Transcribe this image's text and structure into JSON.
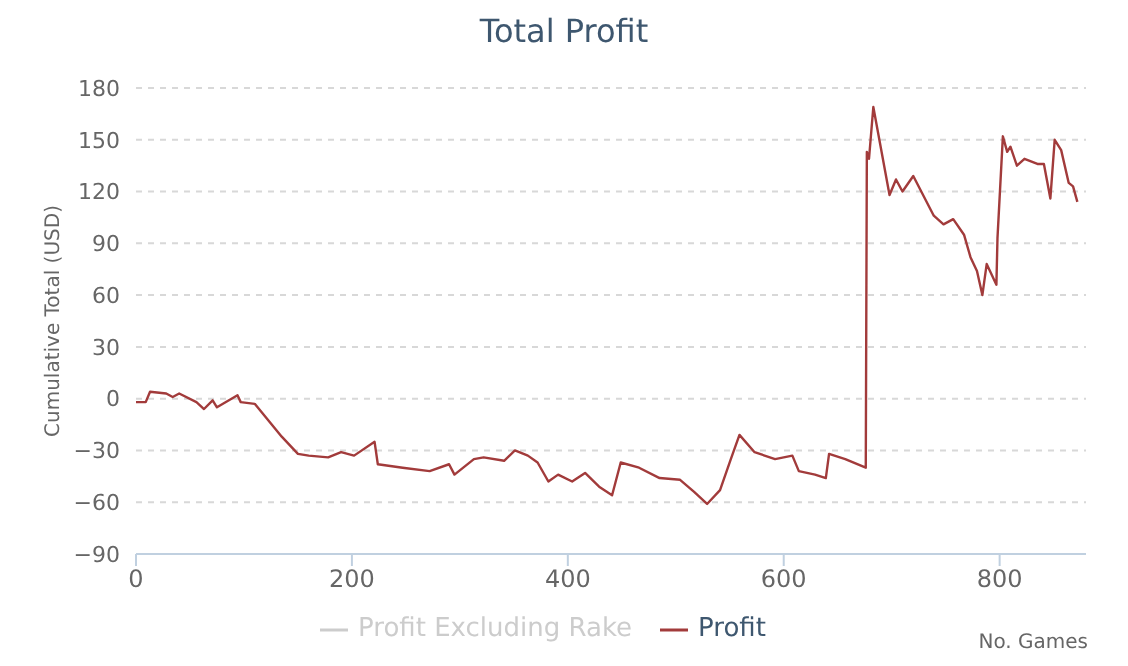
{
  "chart_data": {
    "type": "line",
    "title": "Total Profit",
    "xlabel": "No. Games",
    "ylabel": "Cumulative Total (USD)",
    "xlim": [
      0,
      880
    ],
    "xticks": [
      0,
      200,
      400,
      600,
      800
    ],
    "ylim": [
      -90,
      180
    ],
    "yticks": [
      -90,
      -60,
      -30,
      0,
      30,
      60,
      90,
      120,
      150,
      180
    ],
    "grid": "y",
    "legend": "bottom",
    "series": [
      {
        "name": "Profit Excluding Rake",
        "color": "#cccccc"
      },
      {
        "name": "Profit",
        "color": "#a23b3b",
        "x": [
          0,
          9,
          13,
          28,
          34,
          40,
          56,
          63,
          71,
          75,
          94,
          97,
          110,
          135,
          150,
          160,
          178,
          190,
          202,
          221,
          224,
          247,
          272,
          290,
          295,
          313,
          322,
          341,
          351,
          363,
          372,
          382,
          391,
          404,
          416,
          429,
          441,
          449,
          466,
          485,
          504,
          517,
          529,
          541,
          551,
          559,
          573,
          592,
          608,
          614,
          629,
          639,
          642,
          657,
          676,
          677,
          679,
          683,
          698,
          704,
          710,
          720,
          739,
          748,
          757,
          767,
          773,
          779,
          784,
          788,
          797,
          798,
          803,
          807,
          810,
          816,
          823,
          835,
          841,
          847,
          851,
          857,
          864,
          868,
          872
        ],
        "values": [
          -2,
          -2,
          4,
          3,
          1,
          3,
          -2,
          -6,
          -1,
          -5,
          2,
          -2,
          -3,
          -22,
          -32,
          -33,
          -34,
          -31,
          -33,
          -25,
          -38,
          -40,
          -42,
          -38,
          -44,
          -35,
          -34,
          -36,
          -30,
          -33,
          -37,
          -48,
          -44,
          -48,
          -43,
          -51,
          -56,
          -37,
          -40,
          -46,
          -47,
          -54,
          -61,
          -53,
          -35,
          -21,
          -31,
          -35,
          -33,
          -42,
          -44,
          -46,
          -32,
          -35,
          -40,
          143,
          139,
          169,
          118,
          127,
          120,
          129,
          106,
          101,
          104,
          95,
          82,
          74,
          60,
          78,
          66,
          93,
          152,
          143,
          146,
          135,
          139,
          136,
          136,
          116,
          150,
          144,
          125,
          123,
          114
        ]
      }
    ]
  }
}
